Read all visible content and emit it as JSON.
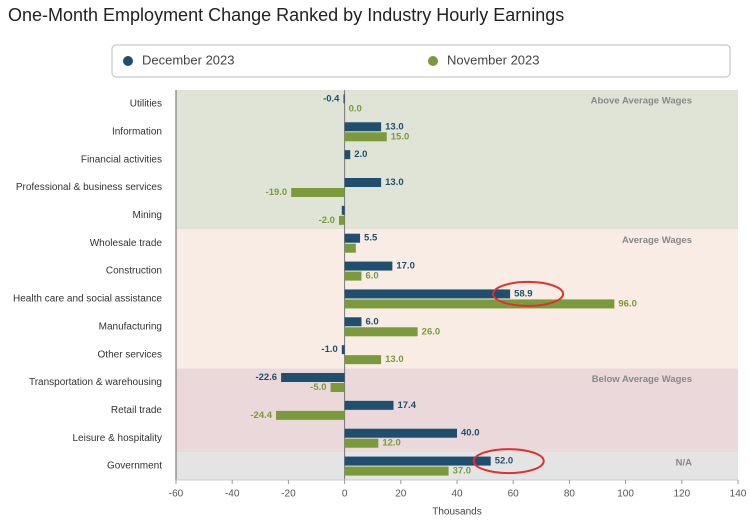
{
  "chart_data": {
    "type": "hbar",
    "title": "One-Month Employment Change Ranked by Industry Hourly Earnings",
    "x_label": "Thousands",
    "categories": [
      "Utilities",
      "Information",
      "Financial activities",
      "Professional & business services",
      "Mining",
      "Wholesale trade",
      "Construction",
      "Health care and social assistance",
      "Manufacturing",
      "Other services",
      "Transportation & warehousing",
      "Retail trade",
      "Leisure & hospitality",
      "Government"
    ],
    "series": [
      {
        "name": "December 2023",
        "color": "#1f4e6e",
        "values": [
          -0.4,
          13.0,
          2.0,
          13.0,
          -1.0,
          5.5,
          17.0,
          58.9,
          6.0,
          -1.0,
          -22.6,
          17.4,
          40.0,
          52.0
        ],
        "value_labels": [
          "-0.4",
          "13.0",
          "2.0",
          "13.0",
          null,
          "5.5",
          "17.0",
          "58.9",
          "6.0",
          "-1.0",
          "-22.6",
          "17.4",
          "40.0",
          "52.0"
        ]
      },
      {
        "name": "November 2023",
        "color": "#7a9a3c",
        "values": [
          0.0,
          15.0,
          0,
          -19.0,
          -2.0,
          4,
          6.0,
          96.0,
          26.0,
          13.0,
          -5.0,
          -24.4,
          12.0,
          37.0
        ],
        "value_labels": [
          "0.0",
          "15.0",
          null,
          "-19.0",
          "-2.0",
          null,
          "6.0",
          "96.0",
          "26.0",
          "13.0",
          "-5.0",
          "-24.4",
          "12.0",
          "37.0"
        ]
      }
    ],
    "bands": [
      {
        "label": "Above Average Wages",
        "start": 0,
        "end": 4,
        "color": "#dfe4d6"
      },
      {
        "label": "Average Wages",
        "start": 5,
        "end": 9,
        "color": "#f9ece4"
      },
      {
        "label": "Below Average Wages",
        "start": 10,
        "end": 12,
        "color": "#ead8da"
      },
      {
        "label": "N/A",
        "start": 13,
        "end": 13,
        "color": "#e4e4e4"
      }
    ],
    "highlights": [
      {
        "series": 0,
        "index": 7,
        "color": "#e03030"
      },
      {
        "series": 0,
        "index": 13,
        "color": "#e03030"
      }
    ],
    "xlim": [
      -60,
      140
    ],
    "xticks": [
      -60,
      -40,
      -20,
      0,
      20,
      40,
      60,
      80,
      100,
      120,
      140
    ]
  }
}
